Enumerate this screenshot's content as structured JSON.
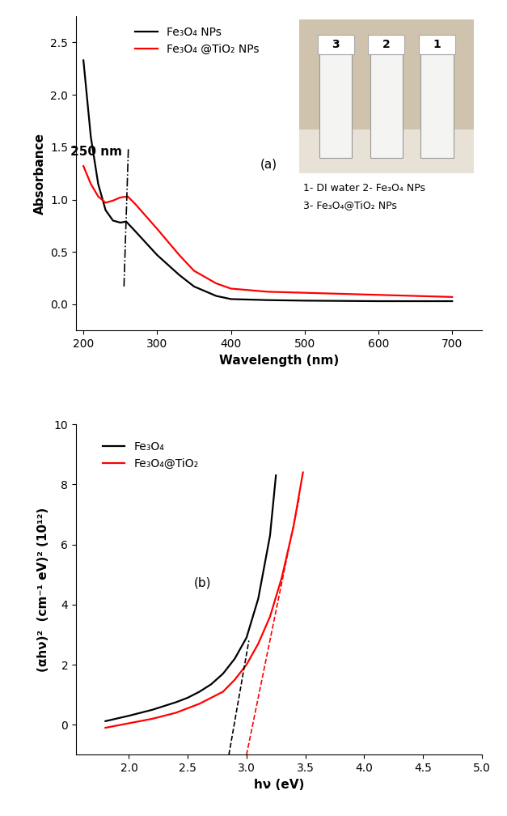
{
  "chart_data": [
    {
      "type": "line",
      "x_label": "Wavelength (nm)",
      "y_label": "Absorbance",
      "annotations": [
        {
          "text": "(a)",
          "x": 440,
          "y": 1.3
        },
        {
          "text": "250 nm",
          "x": 252,
          "y": 1.42
        }
      ],
      "guide_line": {
        "x": [
          255,
          261
        ],
        "y": [
          0.17,
          1.5
        ],
        "color": "#000000",
        "line_style": "dashdot"
      },
      "series": [
        {
          "name": "Fe₃O₄ NPs",
          "color": "#000000",
          "x": [
            200,
            210,
            220,
            230,
            240,
            250,
            258,
            270,
            300,
            330,
            350,
            380,
            400,
            450,
            500,
            600,
            700
          ],
          "values": [
            2.33,
            1.6,
            1.15,
            0.9,
            0.8,
            0.78,
            0.79,
            0.7,
            0.47,
            0.28,
            0.17,
            0.08,
            0.05,
            0.04,
            0.035,
            0.03,
            0.03
          ]
        },
        {
          "name": "Fe₃O₄ @TiO₂ NPs",
          "color": "#ff0000",
          "x": [
            200,
            210,
            220,
            230,
            240,
            250,
            260,
            270,
            300,
            330,
            350,
            380,
            400,
            450,
            500,
            600,
            700
          ],
          "values": [
            1.32,
            1.15,
            1.03,
            0.97,
            0.99,
            1.02,
            1.03,
            0.96,
            0.72,
            0.47,
            0.32,
            0.2,
            0.15,
            0.12,
            0.11,
            0.09,
            0.07
          ]
        }
      ],
      "xlim": [
        190,
        740
      ],
      "xticks": [
        200,
        300,
        400,
        500,
        600,
        700
      ],
      "ylim": [
        -0.25,
        2.75
      ],
      "yticks": [
        {
          "value": 0,
          "label": "0.0"
        },
        {
          "value": 0.5,
          "label": "0.5"
        },
        {
          "value": 1.0,
          "label": "1.0"
        },
        {
          "value": 1.5,
          "label": "1.5"
        },
        {
          "value": 2.0,
          "label": "2.0"
        },
        {
          "value": 2.5,
          "label": "2.5"
        }
      ],
      "legend": "upper left",
      "inset_photo": {
        "vial_labels": [
          "3",
          "2",
          "1"
        ],
        "caption": [
          "1- DI water 2- Fe₃O₄ NPs",
          "3- Fe₃O₄@TiO₂ NPs"
        ]
      }
    },
    {
      "type": "line",
      "x_label": "hν (eV)",
      "y_label": "(αhν)²  (cm⁻¹ eV)² (10¹²)",
      "annotations": [
        {
          "text": "(b)",
          "x": 2.55,
          "y": 4.6
        }
      ],
      "series": [
        {
          "name": "Fe₃O₄",
          "color": "#000000",
          "x": [
            1.8,
            2.0,
            2.2,
            2.4,
            2.5,
            2.6,
            2.7,
            2.8,
            2.9,
            3.0,
            3.1,
            3.2,
            3.25
          ],
          "values": [
            0.12,
            0.3,
            0.5,
            0.75,
            0.9,
            1.1,
            1.35,
            1.7,
            2.2,
            2.9,
            4.2,
            6.3,
            8.3
          ]
        },
        {
          "name": "Fe₃O₄@TiO₂",
          "color": "#ff0000",
          "x": [
            1.8,
            2.0,
            2.2,
            2.4,
            2.6,
            2.8,
            2.9,
            3.0,
            3.1,
            3.2,
            3.3,
            3.4,
            3.48
          ],
          "values": [
            -0.1,
            0.05,
            0.2,
            0.4,
            0.7,
            1.1,
            1.5,
            2.0,
            2.7,
            3.6,
            4.9,
            6.6,
            8.4
          ]
        }
      ],
      "fit_lines": [
        {
          "color": "#000000",
          "line_style": "dashed",
          "x": [
            2.85,
            3.02
          ],
          "y": [
            -1.0,
            2.8
          ]
        },
        {
          "color": "#ff0000",
          "line_style": "dashed",
          "x": [
            3.0,
            3.45
          ],
          "y": [
            -1.0,
            7.6
          ]
        }
      ],
      "xlim": [
        1.55,
        5.0
      ],
      "xticks": [
        {
          "value": 2.0,
          "label": "2.0"
        },
        {
          "value": 2.5,
          "label": "2.5"
        },
        {
          "value": 3.0,
          "label": "3.0"
        },
        {
          "value": 3.5,
          "label": "3.5"
        },
        {
          "value": 4.0,
          "label": "4.0"
        },
        {
          "value": 4.5,
          "label": "4.5"
        },
        {
          "value": 5.0,
          "label": "5.0"
        }
      ],
      "ylim": [
        -1,
        10
      ],
      "yticks": [
        0,
        2,
        4,
        6,
        8,
        10
      ],
      "legend": "upper left"
    }
  ]
}
